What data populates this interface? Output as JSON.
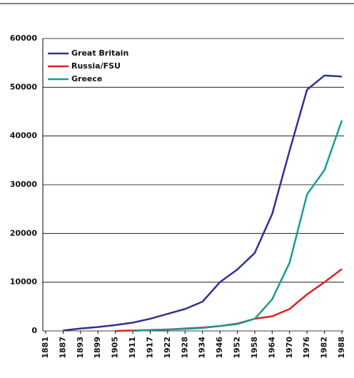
{
  "chart_data": {
    "type": "line",
    "categories": [
      "1881",
      "1887",
      "1893",
      "1899",
      "1905",
      "1911",
      "1917",
      "1922",
      "1928",
      "1934",
      "1946",
      "1952",
      "1958",
      "1964",
      "1970",
      "1976",
      "1982",
      "1988"
    ],
    "series": [
      {
        "name": "Great Britain",
        "color": "#2e3192",
        "values": [
          null,
          100,
          500,
          800,
          1200,
          1700,
          2500,
          3500,
          4500,
          6000,
          10000,
          12600,
          16000,
          24000,
          37000,
          49500,
          52400,
          52200
        ]
      },
      {
        "name": "Russia/FSU",
        "color": "#e02020",
        "values": [
          null,
          null,
          null,
          null,
          0,
          100,
          200,
          300,
          500,
          700,
          1000,
          1500,
          2500,
          3000,
          4500,
          7500,
          10000,
          12700
        ]
      },
      {
        "name": "Greece",
        "color": "#1a9a9a",
        "values": [
          null,
          null,
          null,
          null,
          null,
          0,
          200,
          300,
          400,
          600,
          1000,
          1400,
          2500,
          6500,
          14000,
          28000,
          33000,
          43200
        ]
      }
    ],
    "ylim": [
      0,
      60000
    ],
    "yticks": [
      0,
      10000,
      20000,
      30000,
      40000,
      50000,
      60000
    ],
    "grid": true,
    "legend": "top-left"
  }
}
